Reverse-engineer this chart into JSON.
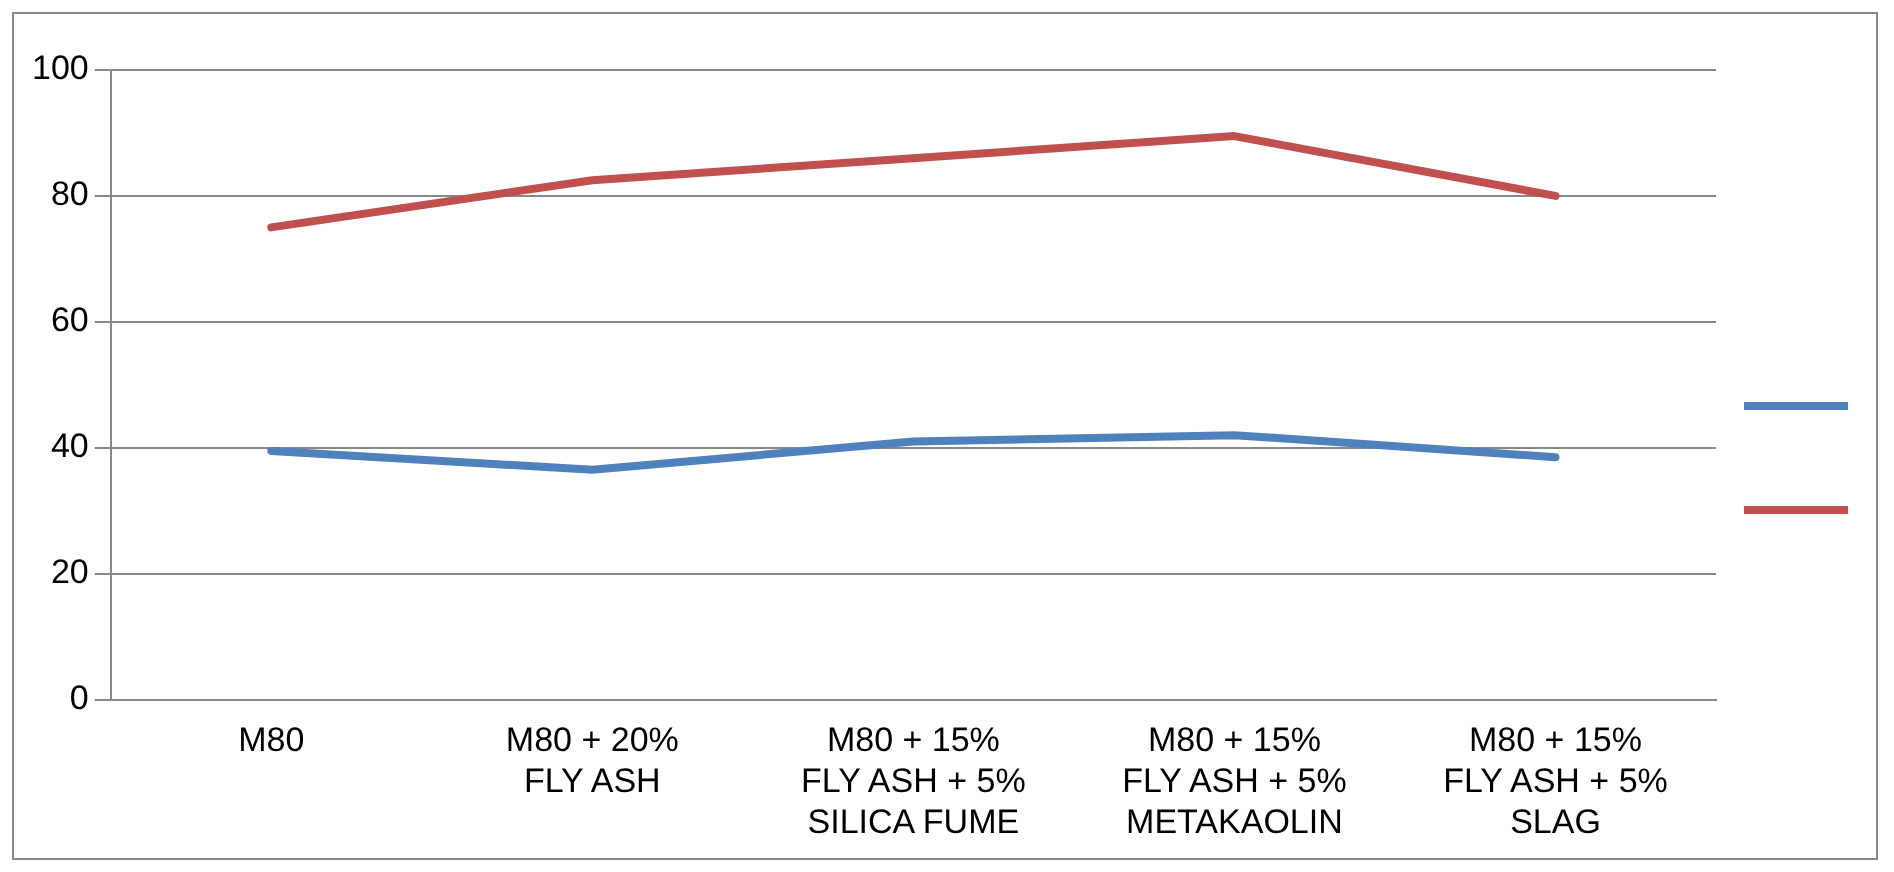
{
  "chart_data": {
    "type": "line",
    "categories": [
      "M80",
      "M80 + 20% FLY ASH",
      "M80 + 15% FLY ASH + 5% SILICA FUME",
      "M80 + 15% FLY ASH + 5% METAKAOLIN",
      "M80 + 15% FLY ASH + 5% SLAG"
    ],
    "series": [
      {
        "color": "#4f81bd",
        "values": [
          39.5,
          36.5,
          41,
          42,
          38.5
        ]
      },
      {
        "color": "#c0504d",
        "values": [
          75,
          82.5,
          86,
          89.5,
          80
        ]
      }
    ],
    "ylim": [
      0,
      100
    ],
    "yticks": [
      0,
      20,
      40,
      60,
      80,
      100
    ],
    "grid": "y",
    "marker": "none"
  }
}
